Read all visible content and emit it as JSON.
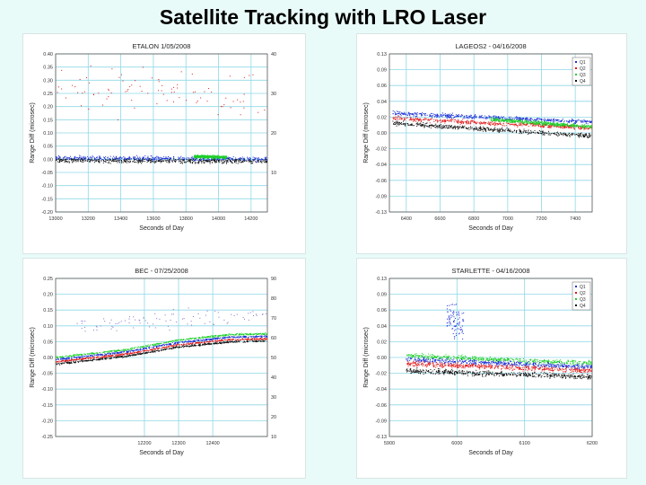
{
  "slide": {
    "title": "Satellite Tracking with LRO Laser"
  },
  "colors": {
    "background": "#e9fbf8",
    "grid": "#8fd8e6",
    "q1": "#1b2fd6",
    "q2": "#e01818",
    "q3": "#1fcf2a",
    "q4": "#111111"
  },
  "chart_data": [
    {
      "type": "scatter",
      "title": "ETALON 1/05/2008",
      "xlabel": "Seconds of Day",
      "ylabel": "Range Diff (microsec)",
      "xlim": [
        13000,
        14300
      ],
      "ylim": [
        -0.2,
        0.4
      ],
      "y2lim": [
        0,
        40
      ],
      "xticks": [
        "13000",
        "13200",
        "13400",
        "13600",
        "13800",
        "14000",
        "14200"
      ],
      "yticks": [
        "0.40",
        "0.35",
        "0.30",
        "0.25",
        "0.20",
        "0.15",
        "0.10",
        "0.05",
        "0.00",
        "-0.05",
        "-0.10",
        "-0.15",
        "-0.20"
      ],
      "y2ticks": [
        "40",
        "30",
        "20",
        "10"
      ],
      "grid": true,
      "series": [
        {
          "color": "#1b2fd6",
          "trend": [
            [
              13000,
              0.005
            ],
            [
              14300,
              0.0
            ]
          ],
          "spread": 0.012
        },
        {
          "color": "#111111",
          "trend": [
            [
              13000,
              -0.005
            ],
            [
              14300,
              -0.008
            ]
          ],
          "spread": 0.012
        },
        {
          "color": "#1fcf2a",
          "trend": [
            [
              13850,
              0.01
            ],
            [
              14050,
              0.008
            ]
          ],
          "spread": 0.008
        },
        {
          "color": "#e01818",
          "trend": [
            [
              13000,
              0.25
            ],
            [
              14300,
              0.25
            ]
          ],
          "spread": 0.14,
          "sparse": true
        }
      ]
    },
    {
      "type": "scatter",
      "title": "LAGEOS2 - 04/16/2008",
      "xlabel": "Seconds of Day",
      "ylabel": "Range Diff (microsec)",
      "xlim": [
        6300,
        7500
      ],
      "ylim": [
        -0.13,
        0.13
      ],
      "xticks": [
        "6400",
        "6600",
        "6800",
        "7000",
        "7200",
        "7400"
      ],
      "yticks": [
        "0.13",
        "0.09",
        "0.06",
        "0.04",
        "0.02",
        "0.00",
        "-0.02",
        "-0.04",
        "-0.06",
        "-0.09",
        "-0.13"
      ],
      "legend": [
        "Q1",
        "Q2",
        "Q3",
        "Q4"
      ],
      "legend_position": "top-right",
      "grid": true,
      "series": [
        {
          "name": "Q1",
          "color": "#1b2fd6",
          "trend": [
            [
              6320,
              0.032
            ],
            [
              7500,
              0.018
            ]
          ],
          "spread": 0.005
        },
        {
          "name": "Q2",
          "color": "#e01818",
          "trend": [
            [
              6320,
              0.024
            ],
            [
              7500,
              0.008
            ]
          ],
          "spread": 0.005
        },
        {
          "name": "Q3",
          "color": "#1fcf2a",
          "trend": [
            [
              6900,
              0.022
            ],
            [
              7500,
              0.01
            ]
          ],
          "spread": 0.004
        },
        {
          "name": "Q4",
          "color": "#111111",
          "trend": [
            [
              6320,
              0.016
            ],
            [
              7500,
              -0.005
            ]
          ],
          "spread": 0.005
        }
      ]
    },
    {
      "type": "scatter",
      "title": "BEC - 07/25/2008",
      "xlabel": "Seconds of Day",
      "ylabel": "Range Diff (microsec)",
      "xlim": [
        11940,
        12560
      ],
      "ylim": [
        -0.25,
        0.25
      ],
      "y2lim": [
        10,
        90
      ],
      "xticks": [
        "12200",
        "12300",
        "12400"
      ],
      "yticks": [
        "0.25",
        "0.20",
        "0.15",
        "0.10",
        "0.05",
        "0.00",
        "-0.05",
        "-0.10",
        "-0.15",
        "-0.20",
        "-0.25"
      ],
      "y2ticks": [
        "90",
        "80",
        "70",
        "60",
        "50",
        "40",
        "30",
        "20",
        "10"
      ],
      "grid": true,
      "series": [
        {
          "color": "#1fcf2a",
          "trend": [
            [
              11940,
              0.0
            ],
            [
              12150,
              0.025
            ],
            [
              12300,
              0.055
            ],
            [
              12450,
              0.072
            ],
            [
              12560,
              0.075
            ]
          ],
          "spread": 0.004
        },
        {
          "color": "#1b2fd6",
          "trend": [
            [
              11940,
              -0.007
            ],
            [
              12150,
              0.018
            ],
            [
              12300,
              0.047
            ],
            [
              12450,
              0.064
            ],
            [
              12560,
              0.067
            ]
          ],
          "spread": 0.004
        },
        {
          "color": "#e01818",
          "trend": [
            [
              11940,
              -0.014
            ],
            [
              12150,
              0.011
            ],
            [
              12300,
              0.04
            ],
            [
              12450,
              0.056
            ],
            [
              12560,
              0.059
            ]
          ],
          "spread": 0.004
        },
        {
          "color": "#111111",
          "trend": [
            [
              11940,
              -0.021
            ],
            [
              12150,
              0.004
            ],
            [
              12300,
              0.033
            ],
            [
              12450,
              0.049
            ],
            [
              12560,
              0.052
            ]
          ],
          "spread": 0.004
        },
        {
          "color": "#8a6cc4",
          "trend": [
            [
              12000,
              0.1
            ],
            [
              12560,
              0.14
            ]
          ],
          "spread": 0.04,
          "sparse": true
        }
      ]
    },
    {
      "type": "scatter",
      "title": "STARLETTE - 04/16/2008",
      "xlabel": "Seconds of Day",
      "ylabel": "Range Diff (microsec)",
      "xlim": [
        5900,
        6200
      ],
      "ylim": [
        -0.13,
        0.13
      ],
      "xticks": [
        "5900",
        "6000",
        "6100",
        "6200"
      ],
      "yticks": [
        "0.13",
        "0.09",
        "0.06",
        "0.04",
        "0.02",
        "0.00",
        "-0.02",
        "-0.04",
        "-0.06",
        "-0.09",
        "-0.13"
      ],
      "legend": [
        "Q1",
        "Q2",
        "Q3",
        "Q4"
      ],
      "legend_position": "top-right",
      "grid": true,
      "series": [
        {
          "name": "Q3",
          "color": "#1fcf2a",
          "trend": [
            [
              5925,
              0.003
            ],
            [
              6200,
              -0.01
            ]
          ],
          "spread": 0.006
        },
        {
          "name": "Q1",
          "color": "#1b2fd6",
          "trend": [
            [
              5925,
              -0.003
            ],
            [
              6200,
              -0.016
            ]
          ],
          "spread": 0.006
        },
        {
          "name": "Q2",
          "color": "#e01818",
          "trend": [
            [
              5925,
              -0.01
            ],
            [
              6200,
              -0.022
            ]
          ],
          "spread": 0.006
        },
        {
          "name": "Q4",
          "color": "#111111",
          "trend": [
            [
              5925,
              -0.022
            ],
            [
              6200,
              -0.032
            ]
          ],
          "spread": 0.006
        },
        {
          "name": "Q1",
          "color": "#1b2fd6",
          "trend": [
            [
              5985,
              0.07
            ],
            [
              6010,
              0.05
            ]
          ],
          "spread": 0.04,
          "sparse": true
        }
      ]
    }
  ]
}
